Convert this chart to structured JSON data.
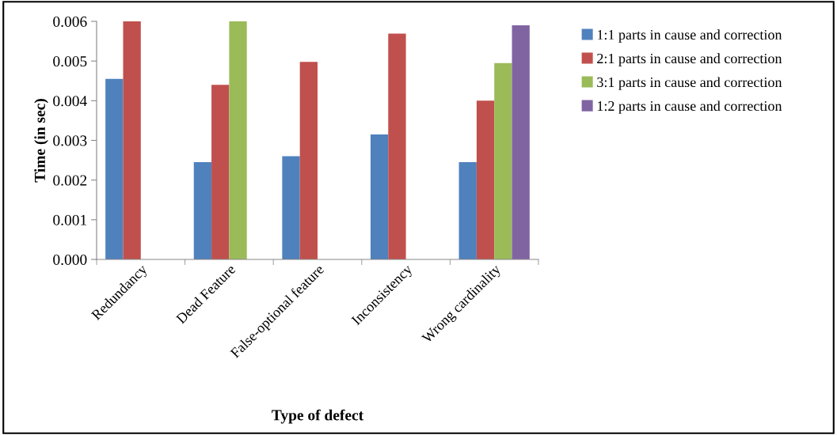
{
  "chart_data": {
    "type": "bar",
    "xlabel": "Type of defect",
    "ylabel": "Time (in sec)",
    "categories": [
      "Redundancy",
      "Dead Feature",
      "False-optional feature",
      "Inconsistency",
      "Wrong cardinality"
    ],
    "series": [
      {
        "name": "1:1 parts in cause and correction",
        "color": "#4f81bd",
        "values": [
          0.00455,
          0.00245,
          0.0026,
          0.00315,
          0.00245
        ]
      },
      {
        "name": "2:1 parts in cause and correction",
        "color": "#c0504d",
        "values": [
          0.006,
          0.0044,
          0.00498,
          0.00569,
          0.004
        ]
      },
      {
        "name": "3:1 parts in cause and correction",
        "color": "#9bbb59",
        "values": [
          null,
          0.006,
          null,
          null,
          0.00495
        ]
      },
      {
        "name": "1:2 parts in cause and correction",
        "color": "#8064a2",
        "values": [
          null,
          null,
          null,
          null,
          0.0059
        ]
      }
    ],
    "ylim": [
      0,
      0.006
    ],
    "yticks": [
      {
        "value": 0,
        "label": "0.000"
      },
      {
        "value": 0.001,
        "label": "0.001"
      },
      {
        "value": 0.002,
        "label": "0.002"
      },
      {
        "value": 0.003,
        "label": "0.003"
      },
      {
        "value": 0.004,
        "label": "0.004"
      },
      {
        "value": 0.005,
        "label": "0.005"
      },
      {
        "value": 0.006,
        "label": "0.006"
      }
    ],
    "grid": false,
    "legend": "right"
  }
}
